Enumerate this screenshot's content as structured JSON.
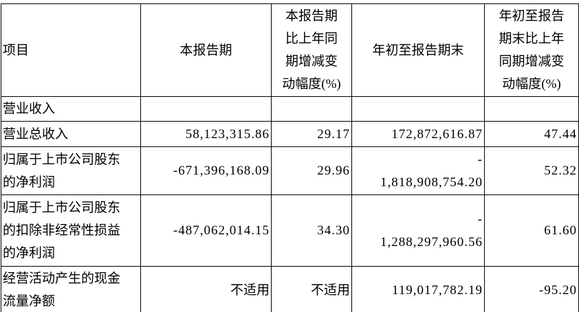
{
  "table": {
    "columns": [
      {
        "label": "项目",
        "display": "项目"
      },
      {
        "label": "本报告期",
        "display": "本报告期"
      },
      {
        "label": "本报告期比上年同期增减变动幅度(%)",
        "display": "本报告期\n比上年同\n期增减变\n动幅度(%)"
      },
      {
        "label": "年初至报告期末",
        "display": "年初至报告期末"
      },
      {
        "label": "年初至报告期末比上年同期增减变动幅度(%)",
        "display": "年初至报告\n期末比上年\n同期增减变\n动幅度(%)"
      }
    ],
    "rows": [
      {
        "item": "营业收入",
        "item_display": "营业收入",
        "current_period": "",
        "current_period_change_pct": "",
        "ytd": "",
        "ytd_change_pct": ""
      },
      {
        "item": "营业总收入",
        "item_display": "营业总收入",
        "current_period": "58,123,315.86",
        "current_period_change_pct": "29.17",
        "ytd": "172,872,616.87",
        "ytd_change_pct": "47.44"
      },
      {
        "item": "归属于上市公司股东的净利润",
        "item_display": "归属于上市公司股东\n的净利润",
        "current_period": "-671,396,168.09",
        "current_period_change_pct": "29.96",
        "ytd": "-1,818,908,754.20",
        "ytd_display": "-\n1,818,908,754.20",
        "ytd_change_pct": "52.32"
      },
      {
        "item": "归属于上市公司股东的扣除非经常性损益的净利润",
        "item_display": "归属于上市公司股东\n的扣除非经常性损益\n的净利润",
        "current_period": "-487,062,014.15",
        "current_period_change_pct": "34.30",
        "ytd": "-1,288,297,960.56",
        "ytd_display": "-\n1,288,297,960.56",
        "ytd_change_pct": "61.60"
      },
      {
        "item": "经营活动产生的现金流量净额",
        "item_display": "经营活动产生的现金\n流量净额",
        "current_period": "不适用",
        "current_period_change_pct": "不适用",
        "ytd": "119,017,782.19",
        "ytd_change_pct": "-95.20"
      }
    ]
  },
  "colors": {
    "border": "#000000",
    "text": "#000000",
    "background": "#ffffff"
  }
}
